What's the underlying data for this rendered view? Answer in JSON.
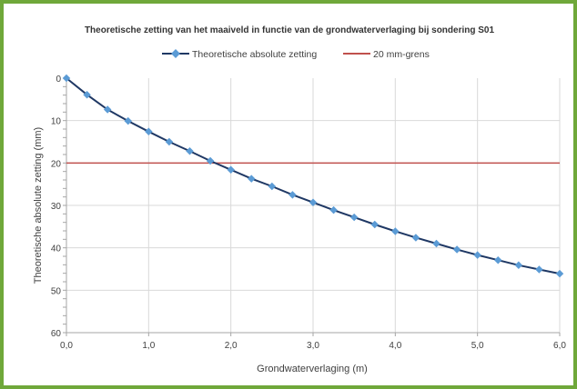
{
  "chart_data": {
    "type": "line",
    "title": "Theoretische zetting van het maaiveld in functie van de grondwaterverlaging bij sondering S01",
    "xlabel": "Grondwaterverlaging (m)",
    "ylabel": "Theoretische absolute zetting (mm)",
    "xlim": [
      0,
      6
    ],
    "ylim": [
      0,
      60
    ],
    "y_inverted": true,
    "x_ticks": [
      0,
      1,
      2,
      3,
      4,
      5,
      6
    ],
    "x_tick_labels": [
      "0,0",
      "1,0",
      "2,0",
      "3,0",
      "4,0",
      "5,0",
      "6,0"
    ],
    "y_ticks": [
      0,
      10,
      20,
      30,
      40,
      50,
      60
    ],
    "y_tick_labels": [
      "0",
      "10",
      "20",
      "30",
      "40",
      "50",
      "60"
    ],
    "grid": true,
    "legend_position": "top",
    "series": [
      {
        "name": "Theoretische absolute zetting",
        "color": "#1f3864",
        "marker_color": "#5b9bd5",
        "x": [
          0,
          0.25,
          0.5,
          0.75,
          1.0,
          1.25,
          1.5,
          1.75,
          2.0,
          2.25,
          2.5,
          2.75,
          3.0,
          3.25,
          3.5,
          3.75,
          4.0,
          4.25,
          4.5,
          4.75,
          5.0,
          5.25,
          5.5,
          5.75,
          6.0
        ],
        "y": [
          0,
          3.9,
          7.4,
          10.1,
          12.6,
          15.0,
          17.2,
          19.5,
          21.6,
          23.7,
          25.5,
          27.5,
          29.3,
          31.1,
          32.8,
          34.5,
          36.1,
          37.6,
          39.0,
          40.4,
          41.7,
          42.9,
          44.1,
          45.1,
          46.1
        ]
      },
      {
        "name": "20 mm-grens",
        "color": "#c0504d",
        "x": [
          0,
          6
        ],
        "y": [
          20,
          20
        ]
      }
    ]
  }
}
